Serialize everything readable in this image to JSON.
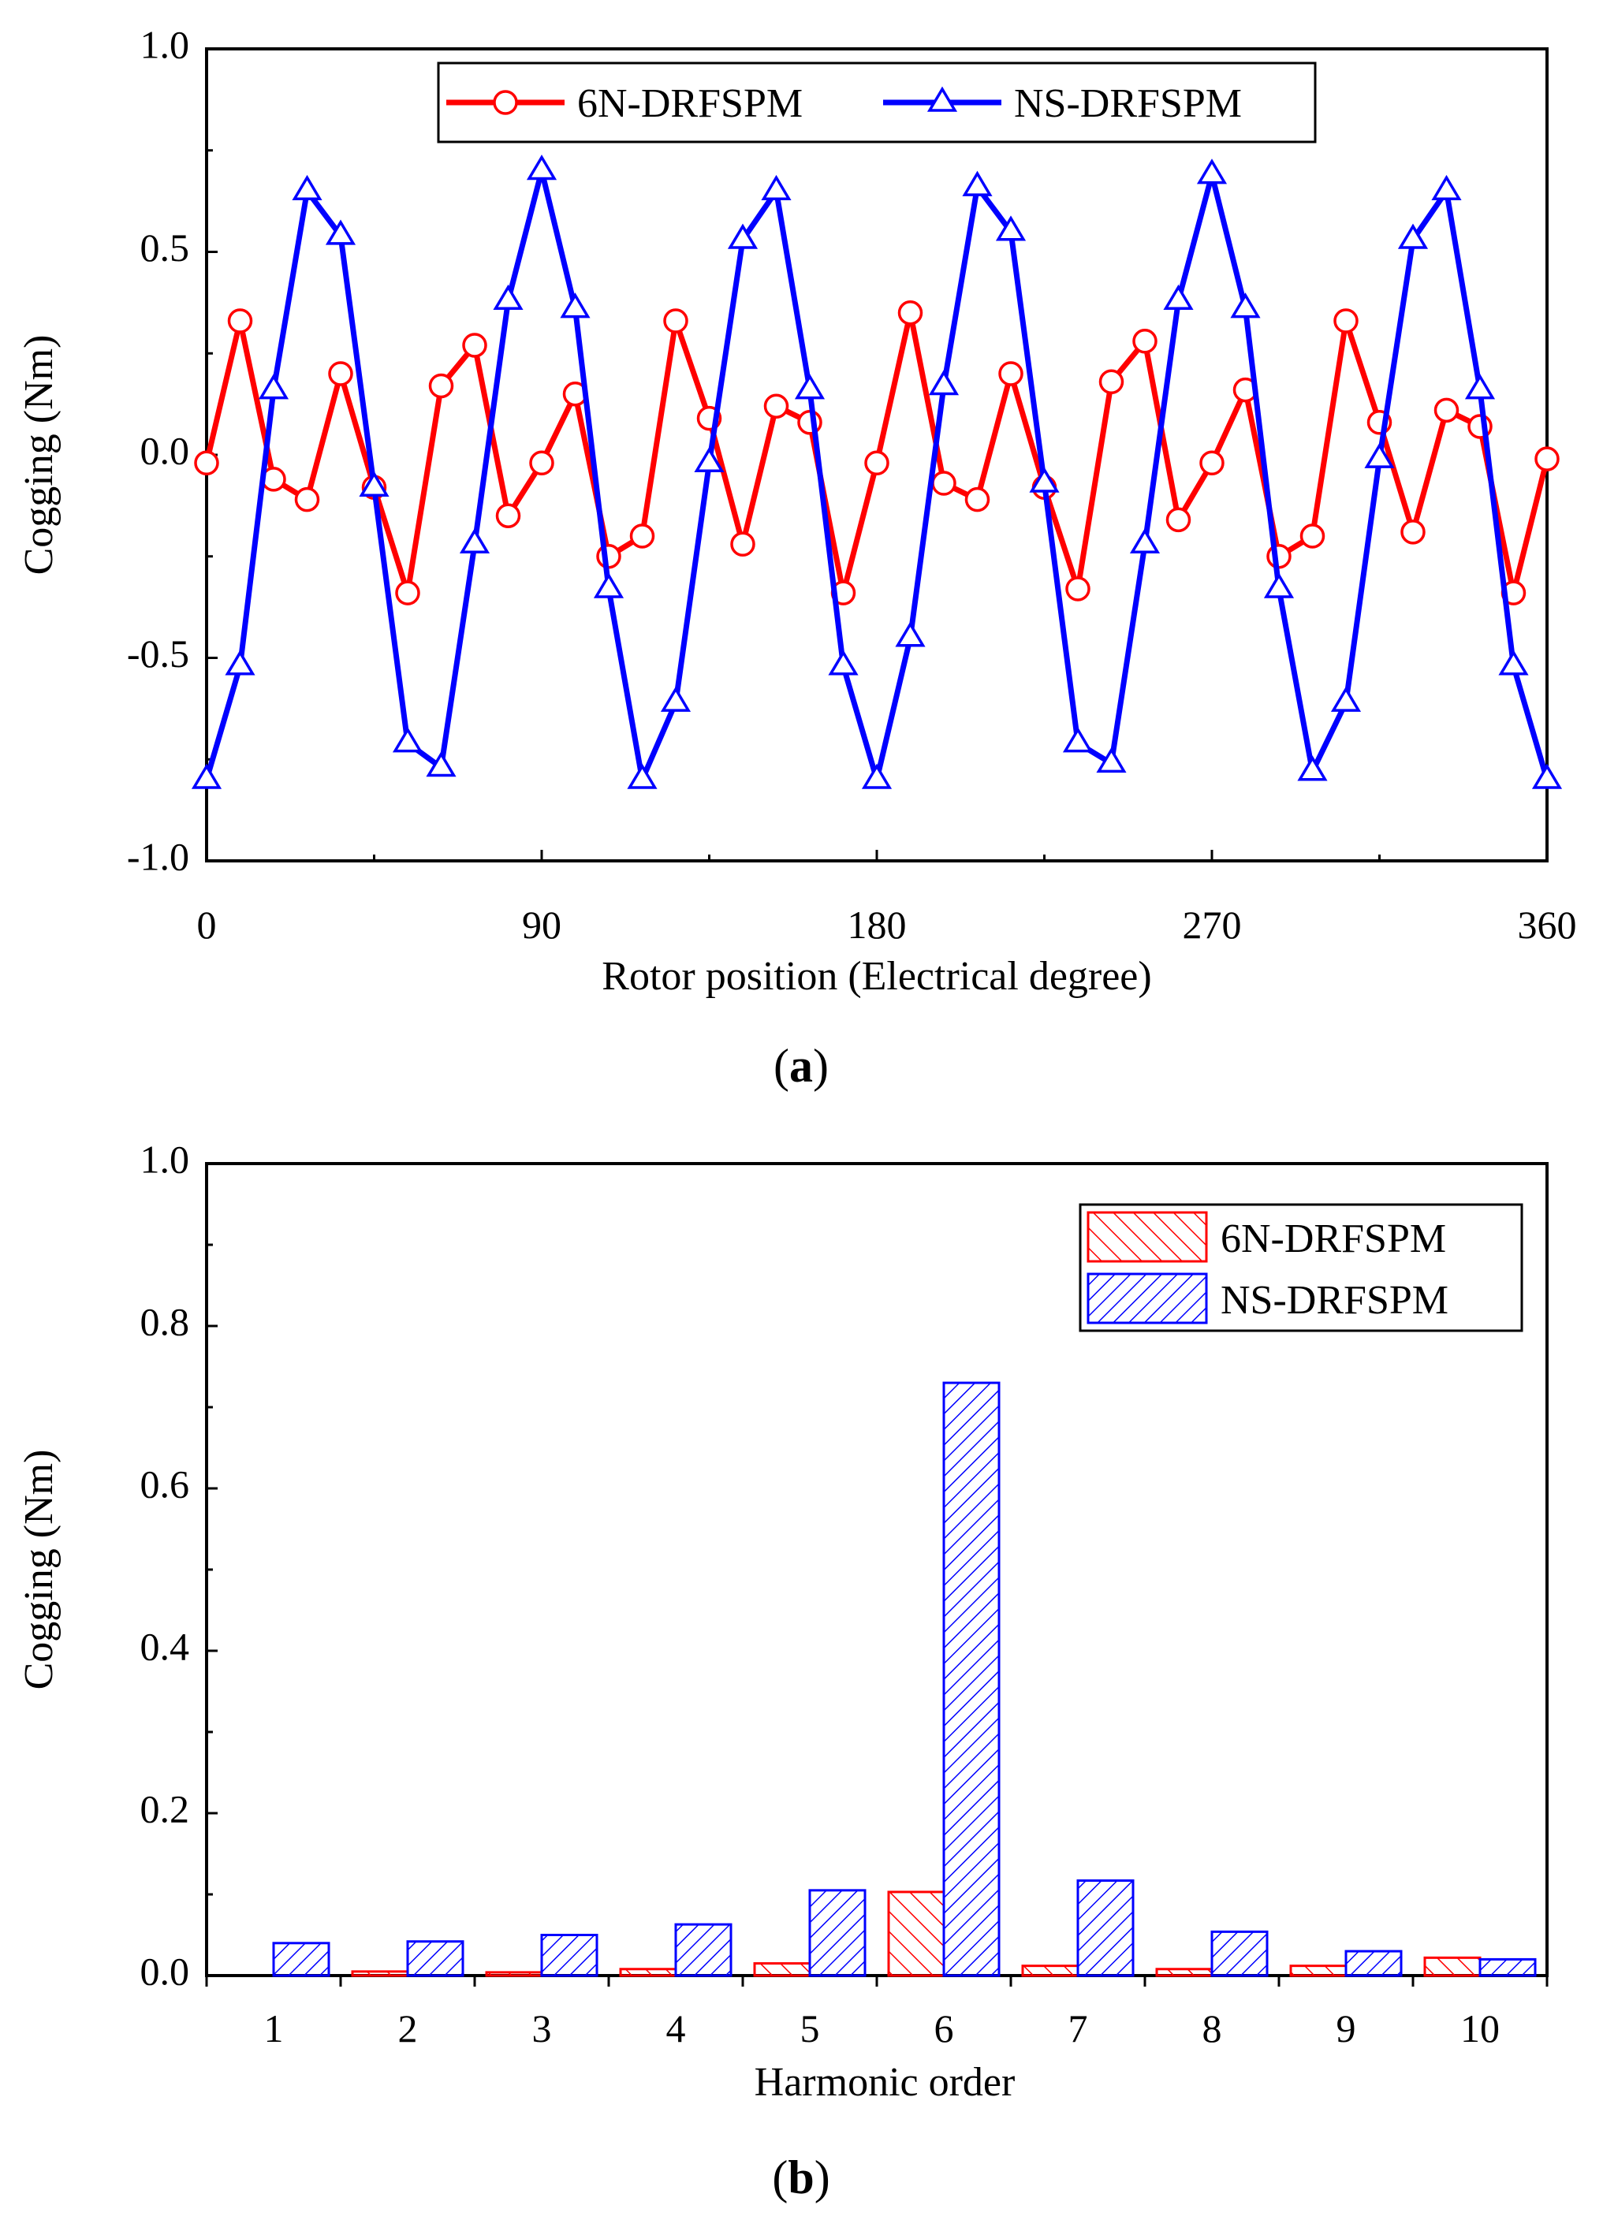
{
  "chart_data": [
    {
      "panel": "(a)",
      "panel_letter": "a",
      "type": "line",
      "xlabel": "Rotor position (Electrical degree)",
      "ylabel": "Cogging (Nm)",
      "xlim": [
        0,
        360
      ],
      "ylim": [
        -1.0,
        1.0
      ],
      "xticks": [
        "0",
        "90",
        "180",
        "270",
        "360"
      ],
      "xtick_values": [
        0,
        90,
        180,
        270,
        360
      ],
      "yticks": [
        "-1.0",
        "-0.5",
        "0.0",
        "0.5",
        "1.0"
      ],
      "ytick_values": [
        -1.0,
        -0.5,
        0.0,
        0.5,
        1.0
      ],
      "legend_position": "top-center",
      "x": [
        0,
        9,
        18,
        27,
        36,
        45,
        54,
        63,
        72,
        81,
        90,
        99,
        108,
        117,
        126,
        135,
        144,
        153,
        162,
        171,
        180,
        189,
        198,
        207,
        216,
        225,
        234,
        243,
        252,
        261,
        270,
        279,
        288,
        297,
        306,
        315,
        324,
        333,
        342,
        351,
        360
      ],
      "series": [
        {
          "name": "6N-DRFSPM",
          "color": "#ff0000",
          "marker": "circle",
          "values": [
            -0.02,
            0.33,
            -0.06,
            -0.11,
            0.2,
            -0.08,
            -0.34,
            0.17,
            0.27,
            -0.15,
            -0.02,
            0.15,
            -0.25,
            -0.2,
            0.33,
            0.09,
            -0.22,
            0.12,
            0.08,
            -0.34,
            -0.02,
            0.35,
            -0.07,
            -0.11,
            0.2,
            -0.08,
            -0.33,
            0.18,
            0.28,
            -0.16,
            -0.02,
            0.16,
            -0.25,
            -0.2,
            0.33,
            0.08,
            -0.19,
            0.11,
            0.07,
            -0.34,
            -0.01
          ]
        },
        {
          "name": "NS-DRFSPM",
          "color": "#0000ff",
          "marker": "triangle",
          "values": [
            -0.8,
            -0.52,
            0.16,
            0.65,
            0.54,
            -0.08,
            -0.71,
            -0.77,
            -0.22,
            0.38,
            0.7,
            0.36,
            -0.33,
            -0.8,
            -0.61,
            -0.02,
            0.53,
            0.65,
            0.16,
            -0.52,
            -0.8,
            -0.45,
            0.17,
            0.66,
            0.55,
            -0.07,
            -0.71,
            -0.76,
            -0.22,
            0.38,
            0.69,
            0.36,
            -0.33,
            -0.78,
            -0.61,
            -0.01,
            0.53,
            0.65,
            0.16,
            -0.52,
            -0.8
          ]
        }
      ]
    },
    {
      "panel": "(b)",
      "panel_letter": "b",
      "type": "bar",
      "xlabel": "Harmonic order",
      "ylabel": "Cogging (Nm)",
      "ylim": [
        0.0,
        1.0
      ],
      "yticks": [
        "0.0",
        "0.2",
        "0.4",
        "0.6",
        "0.8",
        "1.0"
      ],
      "ytick_values": [
        0.0,
        0.2,
        0.4,
        0.6,
        0.8,
        1.0
      ],
      "legend_position": "top-right",
      "categories": [
        "1",
        "2",
        "3",
        "4",
        "5",
        "6",
        "7",
        "8",
        "9",
        "10"
      ],
      "series": [
        {
          "name": "6N-DRFSPM",
          "color": "#ff0000",
          "pattern": "backslash-hatch",
          "values": [
            0.0,
            0.005,
            0.004,
            0.008,
            0.015,
            0.103,
            0.012,
            0.008,
            0.012,
            0.022
          ]
        },
        {
          "name": "NS-DRFSPM",
          "color": "#0000ff",
          "pattern": "slash-hatch",
          "values": [
            0.04,
            0.042,
            0.05,
            0.063,
            0.105,
            0.73,
            0.117,
            0.054,
            0.03,
            0.02
          ]
        }
      ]
    }
  ]
}
